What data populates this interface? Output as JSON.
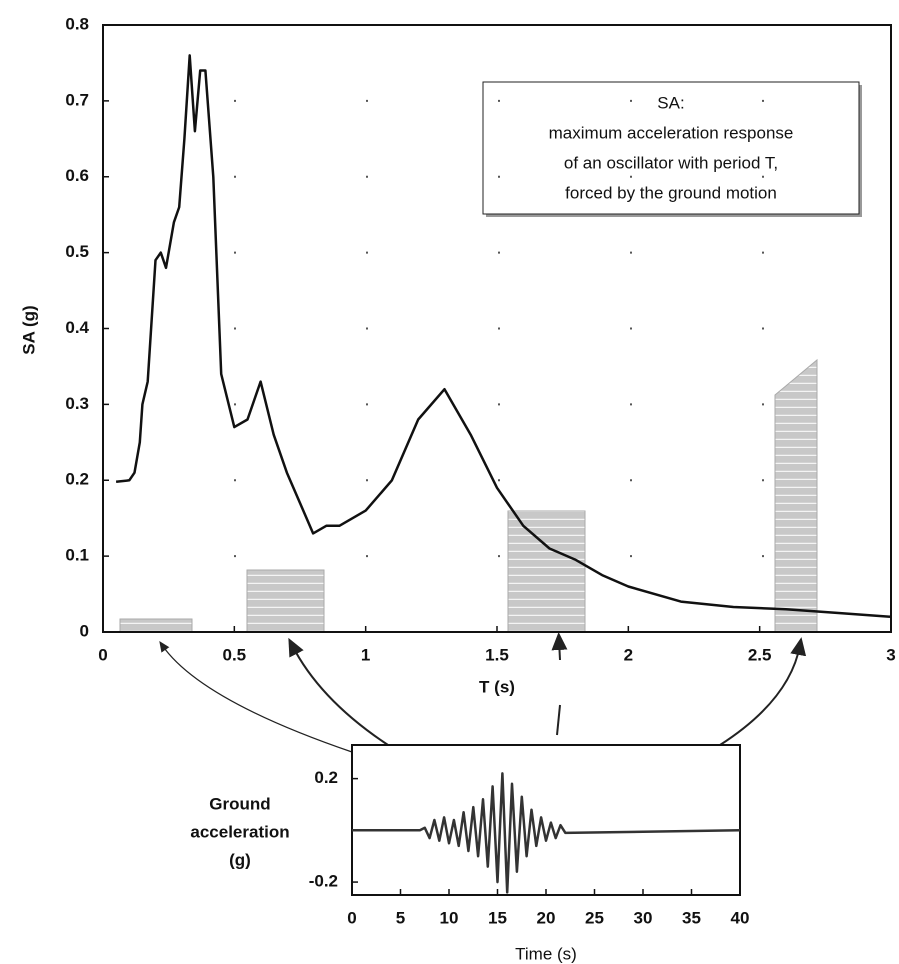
{
  "chart_data": [
    {
      "type": "line",
      "xlabel": "T (s)",
      "ylabel": "SA (g)",
      "color": "#111111",
      "grid": "dotted",
      "annotation": [
        "SA:",
        "maximum acceleration response",
        "of an oscillator with period T,",
        "forced by the ground motion"
      ],
      "x": [
        0.05,
        0.1,
        0.12,
        0.14,
        0.15,
        0.17,
        0.2,
        0.22,
        0.24,
        0.27,
        0.29,
        0.31,
        0.33,
        0.35,
        0.37,
        0.39,
        0.42,
        0.45,
        0.5,
        0.55,
        0.6,
        0.65,
        0.7,
        0.75,
        0.8,
        0.85,
        0.9,
        1.0,
        1.1,
        1.2,
        1.3,
        1.4,
        1.5,
        1.6,
        1.7,
        1.8,
        1.9,
        2.0,
        2.2,
        2.4,
        2.6,
        2.8,
        3.0
      ],
      "values": [
        0.198,
        0.2,
        0.21,
        0.25,
        0.3,
        0.33,
        0.49,
        0.5,
        0.48,
        0.54,
        0.56,
        0.65,
        0.76,
        0.66,
        0.74,
        0.74,
        0.6,
        0.34,
        0.27,
        0.28,
        0.33,
        0.26,
        0.21,
        0.17,
        0.13,
        0.14,
        0.14,
        0.16,
        0.2,
        0.28,
        0.32,
        0.26,
        0.19,
        0.14,
        0.11,
        0.095,
        0.075,
        0.06,
        0.04,
        0.033,
        0.03,
        0.025,
        0.02
      ],
      "xlim": [
        0,
        3
      ],
      "xticks": [
        0,
        0.5,
        1,
        1.5,
        2,
        2.5,
        3
      ],
      "ylim": [
        0,
        0.8
      ],
      "yticks": [
        0,
        0.1,
        0.2,
        0.3,
        0.4,
        0.5,
        0.6,
        0.7,
        0.8
      ]
    },
    {
      "type": "line",
      "xlabel": "Time (s)",
      "ylabel": [
        "Ground",
        "acceleration",
        "(g)"
      ],
      "color": "#333333",
      "grid": false,
      "x": [
        0,
        7,
        7.5,
        8,
        8.5,
        9,
        9.5,
        10,
        10.5,
        11,
        11.5,
        12,
        12.5,
        13,
        13.5,
        14,
        14.5,
        15,
        15.5,
        16,
        16.5,
        17,
        17.5,
        18,
        18.5,
        19,
        19.5,
        20,
        20.5,
        21,
        21.5,
        22,
        40
      ],
      "values": [
        0,
        0,
        0.01,
        -0.03,
        0.04,
        -0.04,
        0.05,
        -0.05,
        0.04,
        -0.06,
        0.07,
        -0.08,
        0.09,
        -0.1,
        0.12,
        -0.14,
        0.17,
        -0.2,
        0.22,
        -0.24,
        0.18,
        -0.16,
        0.13,
        -0.1,
        0.08,
        -0.06,
        0.05,
        -0.04,
        0.03,
        -0.03,
        0.02,
        -0.01,
        0
      ],
      "xlim": [
        0,
        40
      ],
      "xticks": [
        0,
        5,
        10,
        15,
        20,
        25,
        30,
        35,
        40
      ],
      "ylim": [
        -0.25,
        0.33
      ],
      "yticks": [
        -0.2,
        0.2
      ]
    }
  ]
}
